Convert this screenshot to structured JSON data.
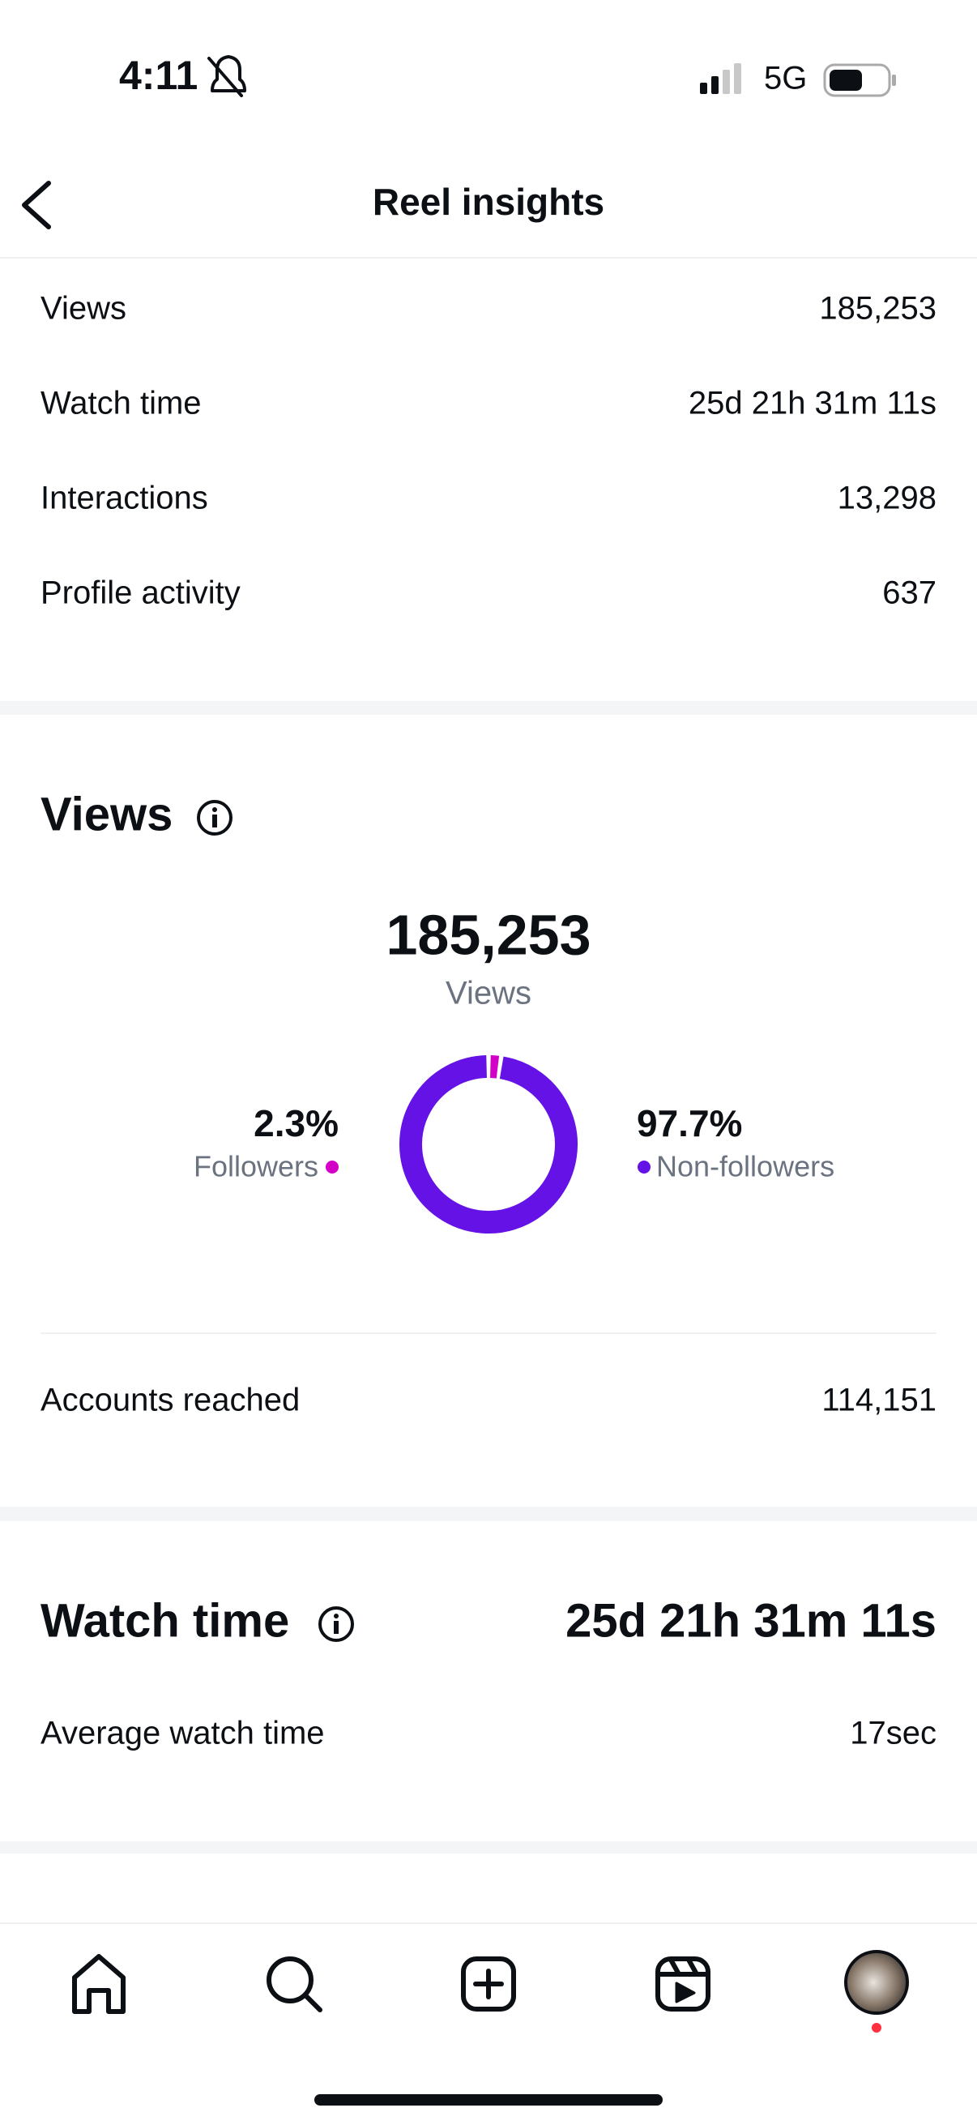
{
  "status_bar": {
    "time": "4:11",
    "network": "5G"
  },
  "header": {
    "title": "Reel insights"
  },
  "summary": {
    "rows": [
      [
        "Views",
        "185,253"
      ],
      [
        "Watch time",
        "25d 21h 31m 11s"
      ],
      [
        "Interactions",
        "13,298"
      ],
      [
        "Profile activity",
        "637"
      ]
    ]
  },
  "views": {
    "title": "Views",
    "total": "185,253",
    "total_label": "Views",
    "breakdown": {
      "categories": [
        "Followers",
        "Non-followers"
      ],
      "values": [
        2.3,
        97.7
      ],
      "value_labels": [
        "2.3%",
        "97.7%"
      ],
      "colors": [
        "#d300c5",
        "#6412e6"
      ]
    },
    "reach": {
      "label": "Accounts reached",
      "value": "114,151"
    }
  },
  "watch_time": {
    "title": "Watch time",
    "value": "25d 21h 31m 11s",
    "rows": [
      [
        "Average watch time",
        "17sec"
      ]
    ]
  }
}
